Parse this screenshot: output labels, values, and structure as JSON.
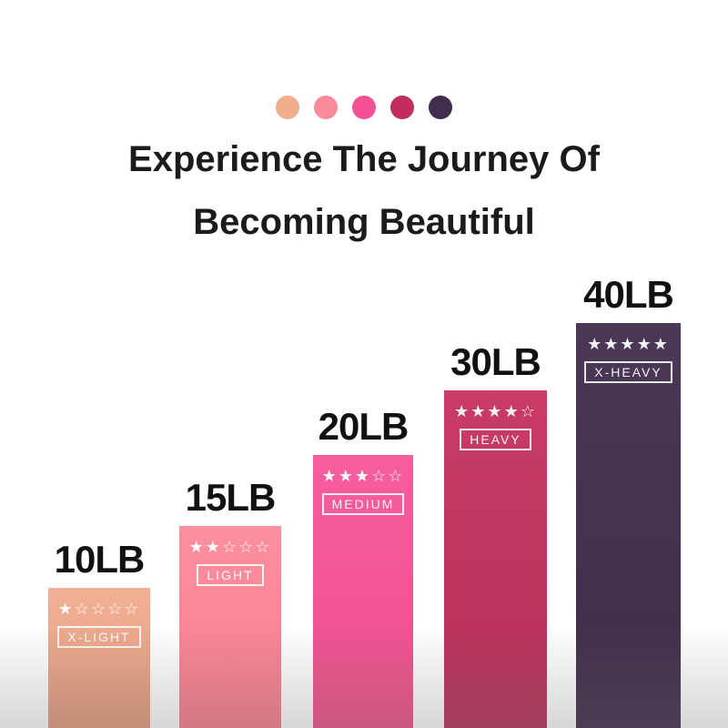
{
  "page": {
    "background_color": "#ffffff"
  },
  "header": {
    "title_line1": "Experience The Journey Of",
    "title_line2": "Becoming Beautiful",
    "palette_dots": [
      {
        "name": "peach-dot",
        "color": "#f2ad8b"
      },
      {
        "name": "pink-dot",
        "color": "#fa8b98"
      },
      {
        "name": "hot-pink-dot",
        "color": "#f45093"
      },
      {
        "name": "crimson-dot",
        "color": "#c22d5e"
      },
      {
        "name": "dark-purple-dot",
        "color": "#402d4f"
      }
    ]
  },
  "chart_data": {
    "type": "bar",
    "title": "Experience The Journey Of Becoming Beautiful",
    "categories": [
      "10LB",
      "15LB",
      "20LB",
      "30LB",
      "40LB"
    ],
    "values": [
      10,
      15,
      20,
      30,
      40
    ],
    "unit": "LB",
    "ylim": [
      0,
      45
    ],
    "legend_position": "none",
    "grid": false,
    "bars": [
      {
        "label": "10LB",
        "value": 10,
        "rating": 1,
        "rating_stars": "★☆☆☆☆",
        "level": "X-LIGHT",
        "color": "#eca687"
      },
      {
        "label": "15LB",
        "value": 15,
        "rating": 2,
        "rating_stars": "★★☆☆☆",
        "level": "LIGHT",
        "color": "#fb8494"
      },
      {
        "label": "20LB",
        "value": 20,
        "rating": 3,
        "rating_stars": "★★★☆☆",
        "level": "MEDIUM",
        "color": "#f4538f"
      },
      {
        "label": "30LB",
        "value": 30,
        "rating": 4,
        "rating_stars": "★★★★☆",
        "level": "HEAVY",
        "color": "#c13560"
      },
      {
        "label": "40LB",
        "value": 40,
        "rating": 5,
        "rating_stars": "★★★★★",
        "level": "X-HEAVY",
        "color": "#44304e"
      }
    ]
  }
}
